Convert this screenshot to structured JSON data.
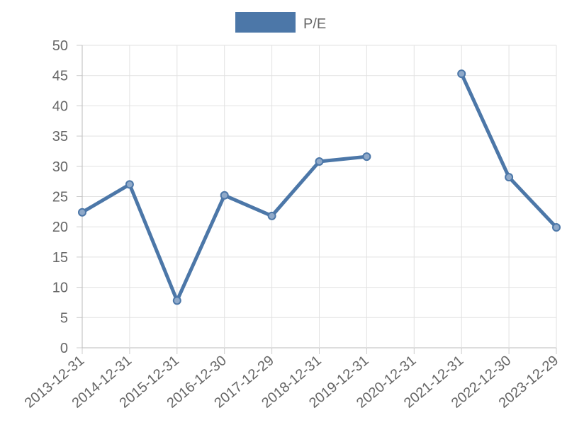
{
  "chart_data": {
    "type": "line",
    "categories": [
      "2013-12-31",
      "2014-12-31",
      "2015-12-31",
      "2016-12-30",
      "2017-12-29",
      "2018-12-31",
      "2019-12-31",
      "2020-12-31",
      "2021-12-31",
      "2022-12-30",
      "2023-12-29"
    ],
    "series": [
      {
        "name": "P/E",
        "color": "#4c77a8",
        "values": [
          22.4,
          27.0,
          7.8,
          25.2,
          21.8,
          30.8,
          31.6,
          null,
          45.3,
          28.2,
          19.9
        ]
      }
    ],
    "ylim": [
      0,
      50
    ],
    "yticks": [
      0,
      5,
      10,
      15,
      20,
      25,
      30,
      35,
      40,
      45,
      50
    ],
    "grid": true,
    "legend": "top"
  }
}
